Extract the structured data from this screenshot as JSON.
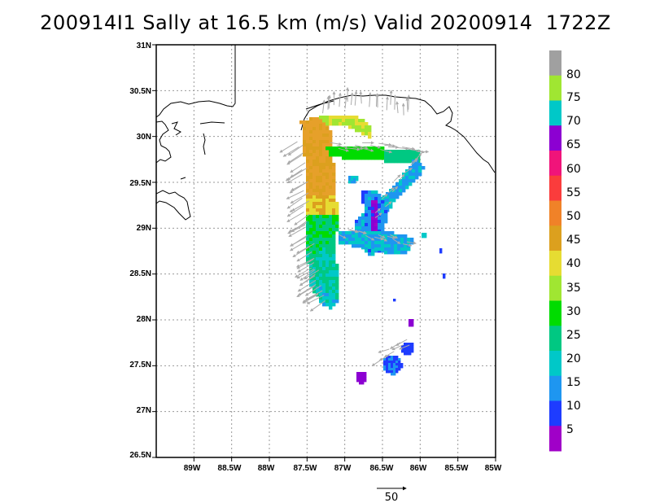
{
  "title": "200914I1 Sally at 16.5 km (m/s) Valid 20200914  1722Z",
  "lat_labels": [
    "31N",
    "30.5N",
    "30N",
    "29.5N",
    "29N",
    "28.5N",
    "28N",
    "27.5N",
    "27N",
    "26.5N"
  ],
  "lon_labels": [
    "89W",
    "88.5W",
    "88W",
    "87.5W",
    "87W",
    "86.5W",
    "86W",
    "85.5W",
    "85W"
  ],
  "colorbar": {
    "labels": [
      "80",
      "75",
      "70",
      "65",
      "60",
      "55",
      "50",
      "45",
      "40",
      "35",
      "30",
      "25",
      "20",
      "15",
      "10",
      "5"
    ],
    "colors": [
      "#a0a0a0",
      "#a0e632",
      "#00c8c8",
      "#8c00d2",
      "#f0147a",
      "#fa3c3c",
      "#f08228",
      "#dca01e",
      "#e6dc32",
      "#a0e632",
      "#00dc00",
      "#00c882",
      "#00c8c8",
      "#1e96f0",
      "#1e3cff",
      "#a000c8"
    ]
  },
  "reference_vector": {
    "label": "50"
  },
  "chart_data": {
    "type": "heatmap",
    "title": "200914I1 Sally at 16.5 km (m/s) Valid 20200914  1722Z",
    "units": "m/s",
    "x_range": [
      -89.5,
      -85.0
    ],
    "y_range": [
      26.5,
      31.0
    ],
    "lat_ticks": [
      31.0,
      30.5,
      30.0,
      29.5,
      29.0,
      28.5,
      28.0,
      27.5,
      27.0,
      26.5
    ],
    "lon_ticks": [
      -89.0,
      -88.5,
      -88.0,
      -87.5,
      -87.0,
      -86.5,
      -86.0,
      -85.5,
      -85.0
    ],
    "grid": true,
    "levels": [
      5,
      10,
      15,
      20,
      25,
      30,
      35,
      40,
      45,
      50,
      55,
      60,
      65,
      70,
      75,
      80
    ],
    "reference_vector_speed": 50
  }
}
